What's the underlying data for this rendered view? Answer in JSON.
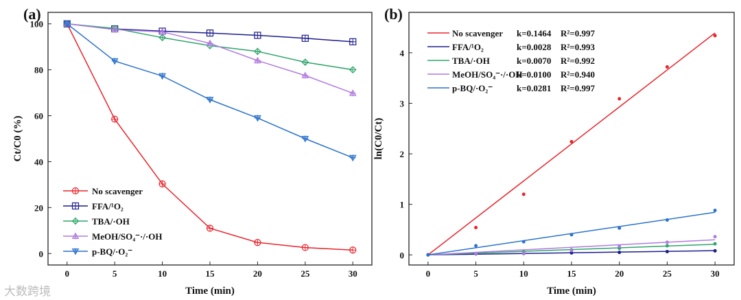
{
  "watermark": "大数跨境",
  "chart_data": [
    {
      "type": "line",
      "panel": "(a)",
      "xlabel": "Time (min)",
      "ylabel": "Ct/C0 (%)",
      "xlim": [
        -2,
        32
      ],
      "ylim": [
        -5,
        105
      ],
      "xticks": [
        0,
        5,
        10,
        15,
        20,
        25,
        30
      ],
      "yticks": [
        0,
        20,
        40,
        60,
        80,
        100
      ],
      "legend": "bottom-left",
      "x": [
        0,
        5,
        10,
        15,
        20,
        25,
        30
      ],
      "series": [
        {
          "name": "No scavenger",
          "color": "#e8242b",
          "marker": "circle-plus",
          "values": [
            100,
            58.5,
            30.3,
            11,
            4.8,
            2.6,
            1.5
          ]
        },
        {
          "name": "FFA/¹O₂",
          "color": "#1c1c8c",
          "marker": "square-plus",
          "values": [
            100,
            97.8,
            96.8,
            96,
            95,
            93.7,
            92.2
          ]
        },
        {
          "name": "TBA/·OH",
          "color": "#2ea56a",
          "marker": "diamond-plus",
          "values": [
            100,
            98,
            94,
            90.5,
            88,
            83.3,
            80
          ]
        },
        {
          "name": "MeOH/SO₄⁻·/·OH",
          "color": "#b07ae0",
          "marker": "triangle-up",
          "values": [
            100,
            97.5,
            96.5,
            91.5,
            84,
            77.5,
            69.8
          ]
        },
        {
          "name": "p-BQ/·O₂⁻",
          "color": "#2a72cc",
          "marker": "triangle-down",
          "values": [
            100,
            83.8,
            77.3,
            67,
            59,
            50,
            41.7
          ]
        }
      ]
    },
    {
      "type": "scatter",
      "panel": "(b)",
      "xlabel": "Time (min)",
      "ylabel": "ln(C0/Ct)",
      "xlim": [
        -2,
        32
      ],
      "ylim": [
        -0.2,
        4.8
      ],
      "xticks": [
        0,
        5,
        10,
        15,
        20,
        25,
        30
      ],
      "yticks": [
        0,
        1,
        2,
        3,
        4
      ],
      "legend": "top-left",
      "x": [
        0,
        5,
        10,
        15,
        20,
        25,
        30
      ],
      "series": [
        {
          "name": "No scavenger",
          "k": "k=0.1464",
          "r2": "R²=0.997",
          "slope": 0.1464,
          "color": "#e8242b",
          "values": [
            0,
            0.54,
            1.2,
            2.24,
            3.09,
            3.72,
            4.34
          ]
        },
        {
          "name": "FFA/¹O₂",
          "k": "k=0.0028",
          "r2": "R²=0.993",
          "slope": 0.0028,
          "color": "#1c1c8c",
          "values": [
            0,
            0.02,
            0.03,
            0.04,
            0.05,
            0.065,
            0.08
          ]
        },
        {
          "name": "TBA/·OH",
          "k": "k=0.0070",
          "r2": "R²=0.992",
          "slope": 0.007,
          "color": "#2ea56a",
          "values": [
            0,
            0.02,
            0.06,
            0.1,
            0.13,
            0.18,
            0.22
          ]
        },
        {
          "name": "MeOH/SO₄⁻·/·OH",
          "k": "k=0.0100",
          "r2": "R²=0.940",
          "slope": 0.01,
          "color": "#b07ae0",
          "values": [
            0,
            0.025,
            0.036,
            0.088,
            0.17,
            0.25,
            0.36
          ]
        },
        {
          "name": "p-BQ/·O₂⁻",
          "k": "k=0.0281",
          "r2": "R²=0.997",
          "slope": 0.0281,
          "color": "#2a72cc",
          "values": [
            0,
            0.18,
            0.26,
            0.4,
            0.53,
            0.69,
            0.88
          ]
        }
      ]
    }
  ]
}
